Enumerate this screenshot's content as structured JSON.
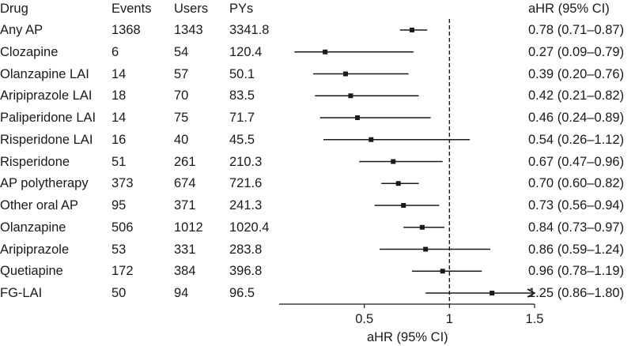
{
  "headers": {
    "drug": "Drug",
    "events": "Events",
    "users": "Users",
    "pys": "PYs",
    "ahr": "aHR (95% CI)"
  },
  "rows": [
    {
      "drug": "Any AP",
      "events": "1368",
      "users": "1343",
      "pys": "3341.8",
      "ahr_text": "0.78 (0.71–0.87)"
    },
    {
      "drug": "Clozapine",
      "events": "6",
      "users": "54",
      "pys": "120.4",
      "ahr_text": "0.27 (0.09–0.79)"
    },
    {
      "drug": "Olanzapine LAI",
      "events": "14",
      "users": "57",
      "pys": "50.1",
      "ahr_text": "0.39 (0.20–0.76)"
    },
    {
      "drug": "Aripiprazole LAI",
      "events": "18",
      "users": "70",
      "pys": "83.5",
      "ahr_text": "0.42 (0.21–0.82)"
    },
    {
      "drug": "Paliperidone LAI",
      "events": "14",
      "users": "75",
      "pys": "71.7",
      "ahr_text": "0.46 (0.24–0.89)"
    },
    {
      "drug": "Risperidone LAI",
      "events": "16",
      "users": "40",
      "pys": "45.5",
      "ahr_text": "0.54 (0.26–1.12)"
    },
    {
      "drug": "Risperidone",
      "events": "51",
      "users": "261",
      "pys": "210.3",
      "ahr_text": "0.67 (0.47–0.96)"
    },
    {
      "drug": "AP polytherapy",
      "events": "373",
      "users": "674",
      "pys": "721.6",
      "ahr_text": "0.70 (0.60–0.82)"
    },
    {
      "drug": "Other oral AP",
      "events": "95",
      "users": "371",
      "pys": "241.3",
      "ahr_text": "0.73 (0.56–0.94)"
    },
    {
      "drug": "Olanzapine",
      "events": "506",
      "users": "1012",
      "pys": "1020.4",
      "ahr_text": "0.84 (0.73–0.97)"
    },
    {
      "drug": "Aripiprazole",
      "events": "53",
      "users": "331",
      "pys": "283.8",
      "ahr_text": "0.86 (0.59–1.24)"
    },
    {
      "drug": "Quetiapine",
      "events": "172",
      "users": "384",
      "pys": "396.8",
      "ahr_text": "0.96 (0.78–1.19)"
    },
    {
      "drug": "FG-LAI",
      "events": "50",
      "users": "94",
      "pys": "96.5",
      "ahr_text": "1.25 (0.86–1.80)"
    }
  ],
  "chart_data": {
    "type": "forest",
    "xlabel": "aHR (95% CI)",
    "xlim": [
      0,
      1.5
    ],
    "xticks": [
      0.5,
      1,
      1.5
    ],
    "xtick_labels": [
      "0.5",
      "1",
      "1.5"
    ],
    "reference_line": 1,
    "reference_line_style": "dashed",
    "truncated_arrow_upper": true,
    "categories": [
      "Any AP",
      "Clozapine",
      "Olanzapine LAI",
      "Aripiprazole LAI",
      "Paliperidone LAI",
      "Risperidone LAI",
      "Risperidone",
      "AP polytherapy",
      "Other oral AP",
      "Olanzapine",
      "Aripiprazole",
      "Quetiapine",
      "FG-LAI"
    ],
    "estimate": [
      0.78,
      0.27,
      0.39,
      0.42,
      0.46,
      0.54,
      0.67,
      0.7,
      0.73,
      0.84,
      0.86,
      0.96,
      1.25
    ],
    "ci_lower": [
      0.71,
      0.09,
      0.2,
      0.21,
      0.24,
      0.26,
      0.47,
      0.6,
      0.56,
      0.73,
      0.59,
      0.78,
      0.86
    ],
    "ci_upper": [
      0.87,
      0.79,
      0.76,
      0.82,
      0.89,
      1.12,
      0.96,
      0.82,
      0.94,
      0.97,
      1.24,
      1.19,
      1.8
    ]
  },
  "colors": {
    "ink": "#1a1a1a"
  }
}
